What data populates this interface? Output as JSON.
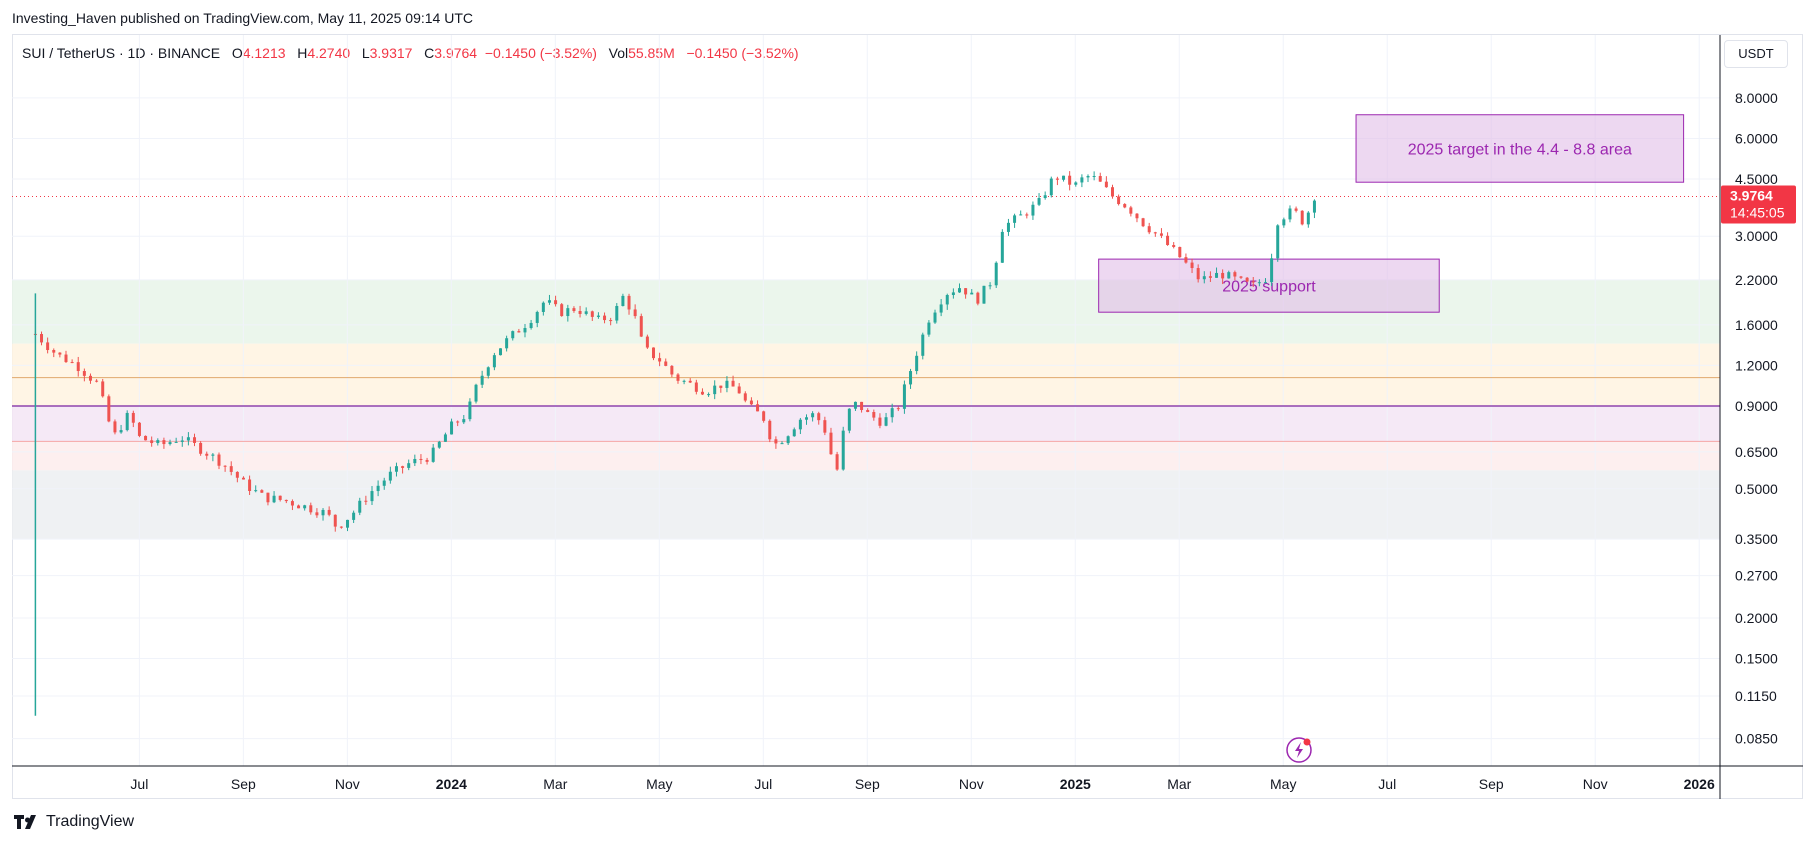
{
  "publisher_line": "Investing_Haven published on TradingView.com, May 11, 2025 09:14 UTC",
  "legend": {
    "symbol": "SUI / TetherUS · 1D · BINANCE",
    "o_label": "O",
    "o_value": "4.1213",
    "h_label": "H",
    "h_value": "4.2740",
    "l_label": "L",
    "l_value": "3.9317",
    "c_label": "C",
    "c_value": "3.9764",
    "change": "−0.1450 (−3.52%)",
    "vol_label": "Vol",
    "vol_value": "55.85M",
    "vol_change": "−0.1450 (−3.52%)"
  },
  "currency": "USDT",
  "price_tag": {
    "price": "3.9764",
    "countdown": "14:45:05"
  },
  "footer": {
    "brand": "TradingView"
  },
  "colors": {
    "up": "#26a69a",
    "down": "#ef5350",
    "annotation": "#9c27b0",
    "price_line": "#f23645"
  },
  "chart_data": {
    "type": "candlestick",
    "title": "SUI / TetherUS · 1D · BINANCE",
    "yscale": "log",
    "ylim": [
      0.07,
      12.5
    ],
    "y_ticks": [
      {
        "value": 8.0,
        "label": "8.0000"
      },
      {
        "value": 6.0,
        "label": "6.0000"
      },
      {
        "value": 4.5,
        "label": "4.5000"
      },
      {
        "value": 3.0,
        "label": "3.0000"
      },
      {
        "value": 2.2,
        "label": "2.2000"
      },
      {
        "value": 1.6,
        "label": "1.6000"
      },
      {
        "value": 1.2,
        "label": "1.2000"
      },
      {
        "value": 0.9,
        "label": "0.9000"
      },
      {
        "value": 0.65,
        "label": "0.6500"
      },
      {
        "value": 0.5,
        "label": "0.5000"
      },
      {
        "value": 0.35,
        "label": "0.3500"
      },
      {
        "value": 0.27,
        "label": "0.2700"
      },
      {
        "value": 0.2,
        "label": "0.2000"
      },
      {
        "value": 0.15,
        "label": "0.1500"
      },
      {
        "value": 0.115,
        "label": "0.1150"
      },
      {
        "value": 0.085,
        "label": "0.0850"
      }
    ],
    "x_ticks": [
      {
        "month": 2,
        "label": "Jul",
        "bold": false
      },
      {
        "month": 4,
        "label": "Sep",
        "bold": false
      },
      {
        "month": 6,
        "label": "Nov",
        "bold": false
      },
      {
        "month": 8,
        "label": "2024",
        "bold": true
      },
      {
        "month": 10,
        "label": "Mar",
        "bold": false
      },
      {
        "month": 12,
        "label": "May",
        "bold": false
      },
      {
        "month": 14,
        "label": "Jul",
        "bold": false
      },
      {
        "month": 16,
        "label": "Sep",
        "bold": false
      },
      {
        "month": 18,
        "label": "Nov",
        "bold": false
      },
      {
        "month": 20,
        "label": "2025",
        "bold": true
      },
      {
        "month": 22,
        "label": "Mar",
        "bold": false
      },
      {
        "month": 24,
        "label": "May",
        "bold": false
      },
      {
        "month": 26,
        "label": "Jul",
        "bold": false
      },
      {
        "month": 28,
        "label": "Sep",
        "bold": false
      },
      {
        "month": 30,
        "label": "Nov",
        "bold": false
      },
      {
        "month": 32,
        "label": "2026",
        "bold": true
      }
    ],
    "x_range_months": [
      -0.45,
      32.4
    ],
    "zones": [
      {
        "from": 1.4,
        "to": 2.2,
        "color": "#e8f5e9"
      },
      {
        "from": 0.9,
        "to": 1.4,
        "color": "#fff3e0"
      },
      {
        "from": 0.7,
        "to": 0.9,
        "color": "#f3e5f5"
      },
      {
        "from": 0.57,
        "to": 0.7,
        "color": "#fdecec"
      },
      {
        "from": 0.35,
        "to": 0.57,
        "color": "#eceff1"
      }
    ],
    "hlines": [
      {
        "value": 1.1,
        "color": "#e0a96d",
        "width": 1
      },
      {
        "value": 0.9,
        "color": "#8e44ad",
        "width": 1.5
      },
      {
        "value": 0.7,
        "color": "#f4a6a6",
        "width": 1
      }
    ],
    "last_price": 3.9764,
    "annotations": [
      {
        "text": "2025 target in the 4.4 - 8.8 area",
        "x_from_month": 25.4,
        "x_to_month": 31.7,
        "y_low": 4.4,
        "y_high": 7.1
      },
      {
        "text": "2025 support",
        "x_from_month": 20.45,
        "x_to_month": 27.0,
        "y_low": 1.75,
        "y_high": 2.55
      }
    ],
    "series": [
      {
        "name": "SUI/USDT close (approx.)",
        "points": [
          [
            0.0,
            1.5
          ],
          [
            0.4,
            1.3
          ],
          [
            0.8,
            1.2
          ],
          [
            1.2,
            1.05
          ],
          [
            1.5,
            0.72
          ],
          [
            1.8,
            0.85
          ],
          [
            2.0,
            0.72
          ],
          [
            2.4,
            0.68
          ],
          [
            2.8,
            0.72
          ],
          [
            3.2,
            0.66
          ],
          [
            3.6,
            0.6
          ],
          [
            4.0,
            0.52
          ],
          [
            4.4,
            0.47
          ],
          [
            4.8,
            0.46
          ],
          [
            5.2,
            0.44
          ],
          [
            5.6,
            0.42
          ],
          [
            5.8,
            0.38
          ],
          [
            6.1,
            0.42
          ],
          [
            6.4,
            0.48
          ],
          [
            6.8,
            0.55
          ],
          [
            7.2,
            0.6
          ],
          [
            7.6,
            0.63
          ],
          [
            8.0,
            0.78
          ],
          [
            8.3,
            0.85
          ],
          [
            8.5,
            1.05
          ],
          [
            8.8,
            1.3
          ],
          [
            9.1,
            1.45
          ],
          [
            9.5,
            1.65
          ],
          [
            9.8,
            1.9
          ],
          [
            10.1,
            1.75
          ],
          [
            10.4,
            1.8
          ],
          [
            10.8,
            1.65
          ],
          [
            11.1,
            1.7
          ],
          [
            11.3,
            1.95
          ],
          [
            11.5,
            1.75
          ],
          [
            11.7,
            1.35
          ],
          [
            12.0,
            1.25
          ],
          [
            12.3,
            1.1
          ],
          [
            12.6,
            1.05
          ],
          [
            12.9,
            1.0
          ],
          [
            13.2,
            1.05
          ],
          [
            13.5,
            1.02
          ],
          [
            13.7,
            0.9
          ],
          [
            14.0,
            0.83
          ],
          [
            14.2,
            0.68
          ],
          [
            14.4,
            0.72
          ],
          [
            14.7,
            0.82
          ],
          [
            15.0,
            0.85
          ],
          [
            15.2,
            0.75
          ],
          [
            15.4,
            0.55
          ],
          [
            15.6,
            0.85
          ],
          [
            15.8,
            0.92
          ],
          [
            16.0,
            0.85
          ],
          [
            16.3,
            0.8
          ],
          [
            16.6,
            0.9
          ],
          [
            16.9,
            1.25
          ],
          [
            17.2,
            1.7
          ],
          [
            17.5,
            2.0
          ],
          [
            17.8,
            2.1
          ],
          [
            18.1,
            1.9
          ],
          [
            18.4,
            2.2
          ],
          [
            18.6,
            3.2
          ],
          [
            19.0,
            3.5
          ],
          [
            19.3,
            3.8
          ],
          [
            19.6,
            4.6
          ],
          [
            20.0,
            4.3
          ],
          [
            20.2,
            4.6
          ],
          [
            20.4,
            4.5
          ],
          [
            20.7,
            4.0
          ],
          [
            21.0,
            3.7
          ],
          [
            21.3,
            3.3
          ],
          [
            21.6,
            3.0
          ],
          [
            22.0,
            2.6
          ],
          [
            22.4,
            2.2
          ],
          [
            22.8,
            2.3
          ],
          [
            23.1,
            2.2
          ],
          [
            23.4,
            2.1
          ],
          [
            23.7,
            2.25
          ],
          [
            23.9,
            3.4
          ],
          [
            24.2,
            3.6
          ],
          [
            24.4,
            3.3
          ],
          [
            24.6,
            4.0
          ]
        ]
      }
    ]
  }
}
